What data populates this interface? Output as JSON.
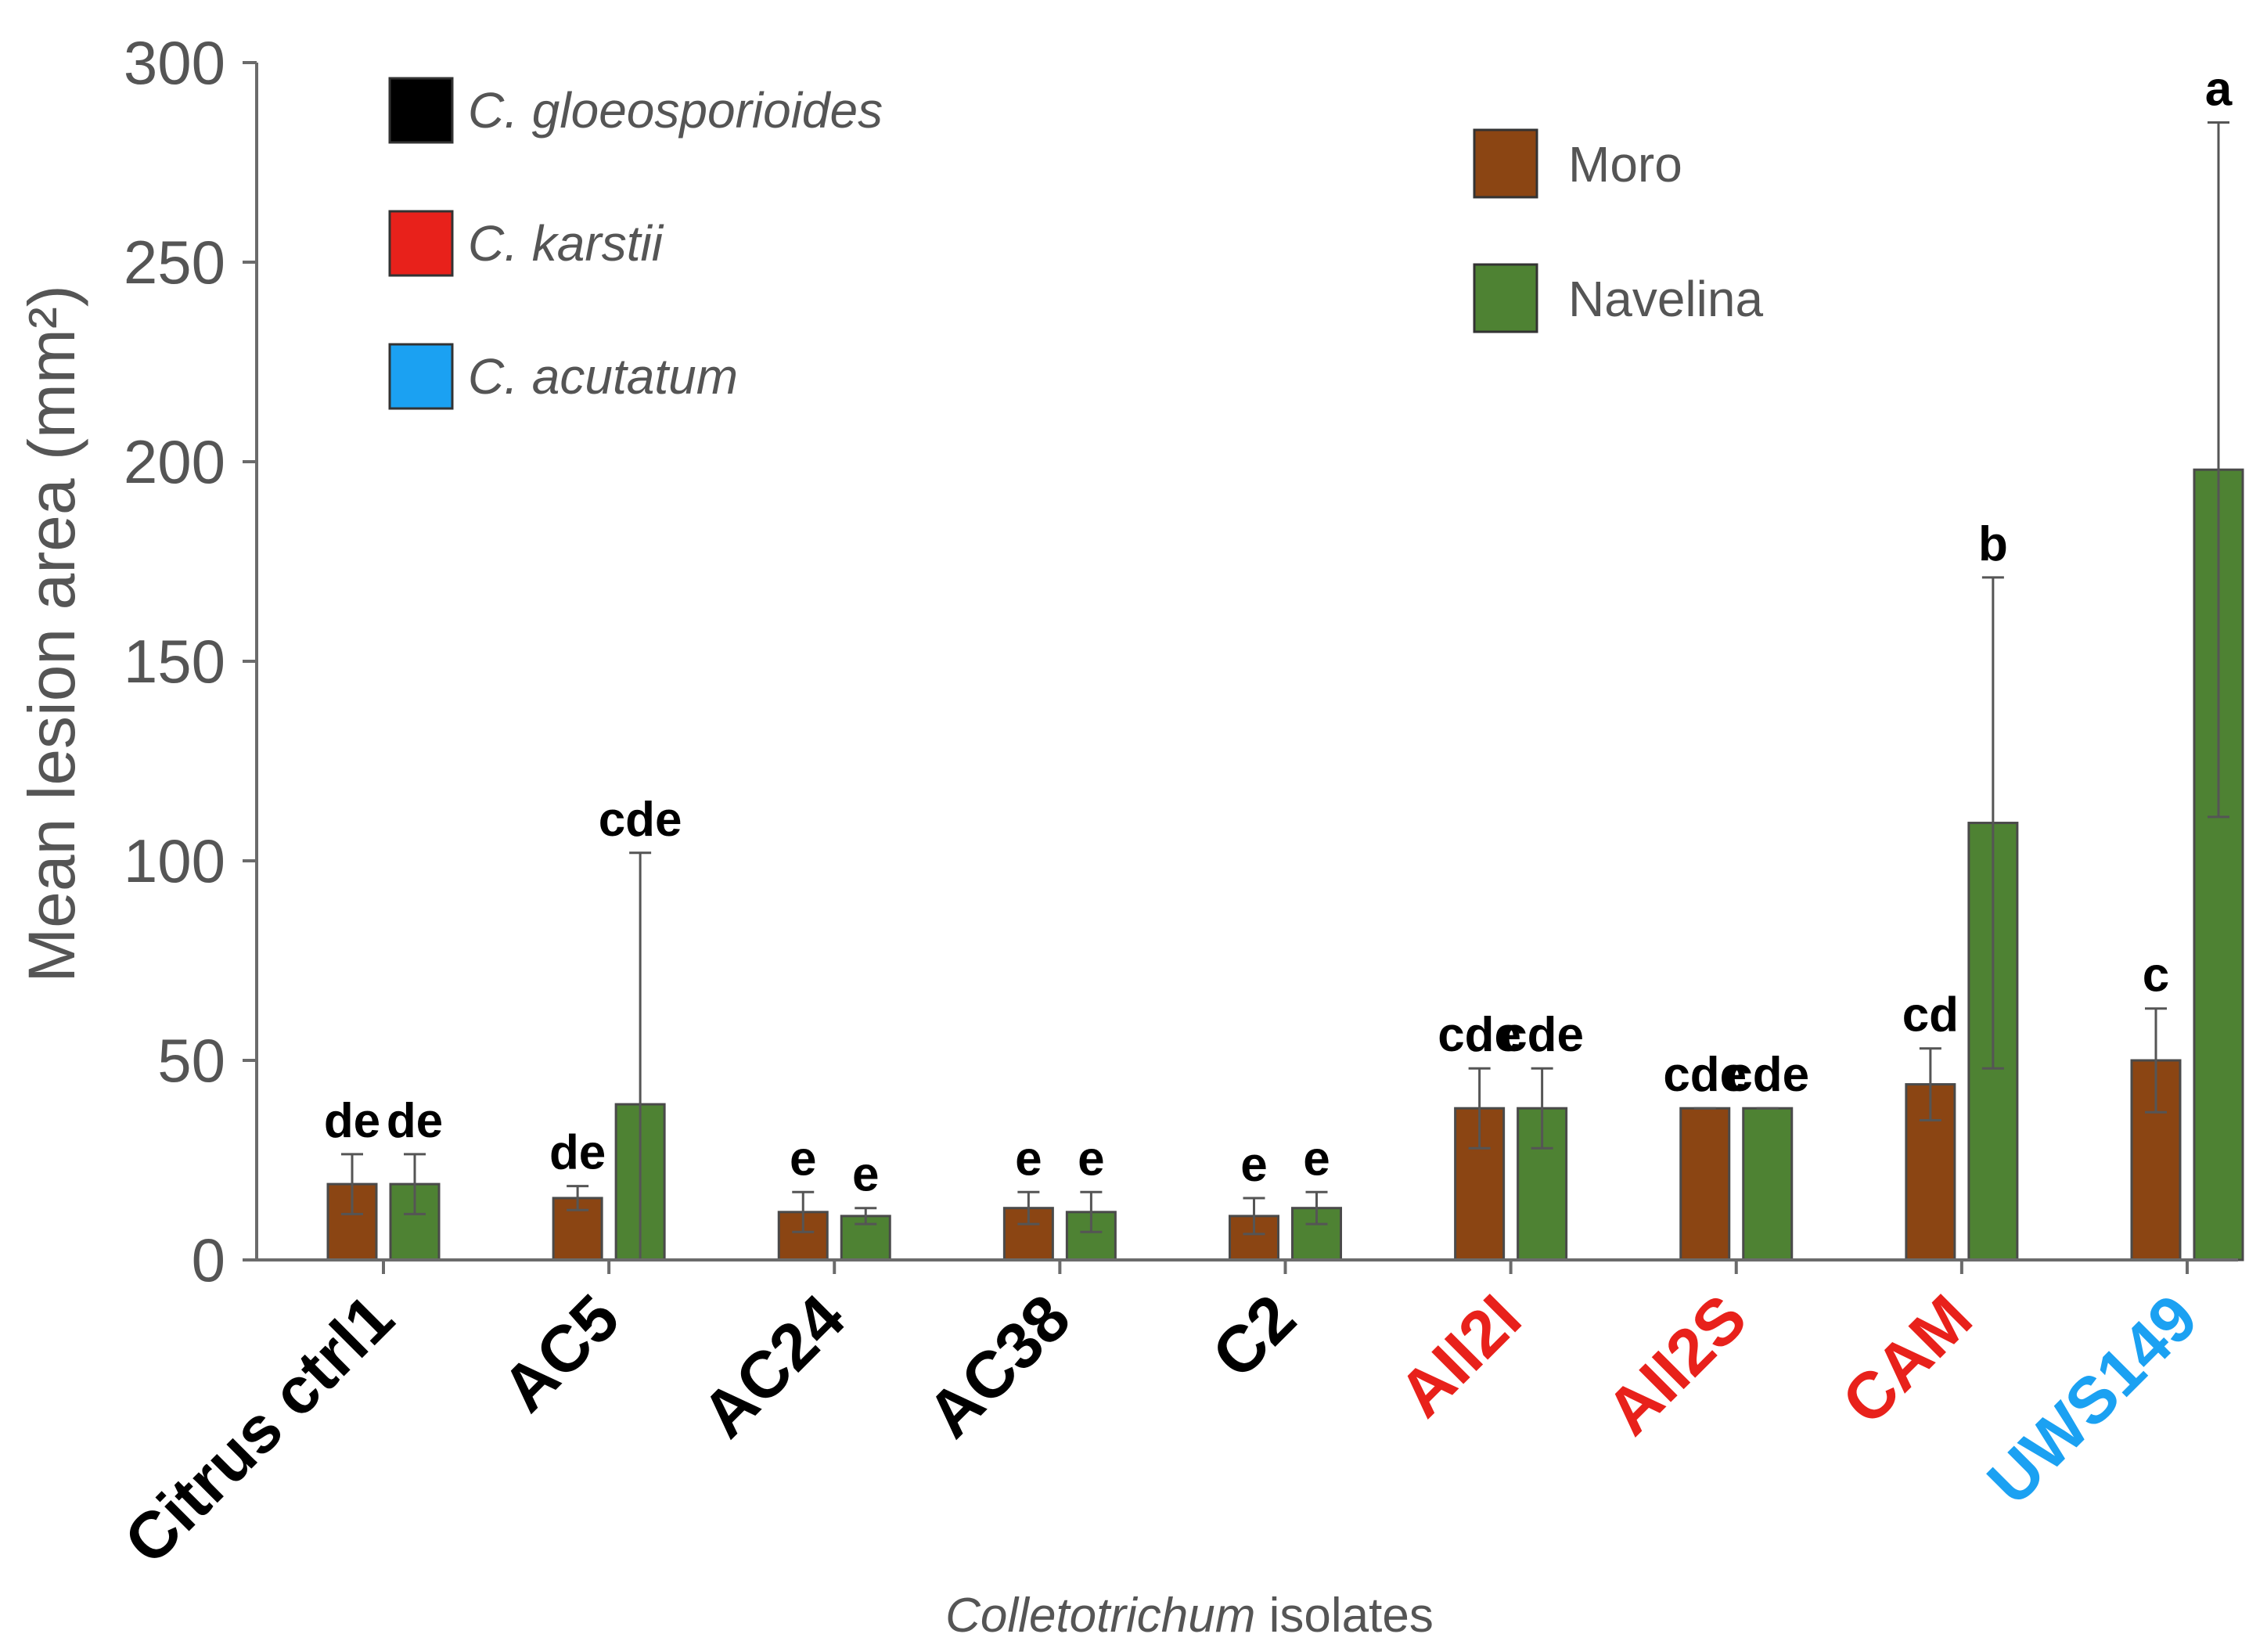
{
  "chart_data": {
    "type": "bar",
    "title": "",
    "ylabel": "Mean lesion area (mm²)",
    "xlabel": {
      "italic": "Colletotrichum",
      "rest": " isolates"
    },
    "ylim": [
      0,
      300
    ],
    "yticks": [
      0,
      50,
      100,
      150,
      200,
      250,
      300
    ],
    "categories": [
      {
        "label": "Citrus ctrl1",
        "species": "C. gloeosporioides"
      },
      {
        "label": "AC5",
        "species": "C. gloeosporioides"
      },
      {
        "label": "AC24",
        "species": "C. gloeosporioides"
      },
      {
        "label": "AC38",
        "species": "C. gloeosporioides"
      },
      {
        "label": "C2",
        "species": "C. gloeosporioides"
      },
      {
        "label": "AII2I",
        "species": "C. karstii"
      },
      {
        "label": "AII2S",
        "species": "C. karstii"
      },
      {
        "label": "CAM",
        "species": "C. karstii"
      },
      {
        "label": "UWS149",
        "species": "C. acutatum"
      }
    ],
    "series": [
      {
        "name": "Moro",
        "color": "#8B4513",
        "values": [
          19,
          15.5,
          12,
          13,
          11,
          38,
          38,
          44,
          50
        ],
        "errors": [
          7.5,
          3,
          5,
          4,
          4.5,
          10,
          0,
          9,
          13
        ],
        "significance": [
          "de",
          "de",
          "e",
          "e",
          "e",
          "cde",
          "cde",
          "cd",
          "c"
        ]
      },
      {
        "name": "Navelina",
        "color": "#4E8233",
        "values": [
          19,
          39,
          11,
          12,
          13,
          38,
          38,
          109.5,
          198
        ],
        "errors": [
          7.5,
          63,
          2,
          5,
          4,
          10,
          0,
          61.5,
          87
        ],
        "significance": [
          "de",
          "cde",
          "e",
          "e",
          "e",
          "cde",
          "cde",
          "b",
          "a"
        ]
      }
    ],
    "species_legend": [
      {
        "name": "C. gloeosporioides",
        "color": "#000000"
      },
      {
        "name": "C. karstii",
        "color": "#E8211B"
      },
      {
        "name": "C. acutatum",
        "color": "#1BA1F2"
      }
    ],
    "cultivar_legend_position": "top-right",
    "species_legend_position": "top-left",
    "grid": false
  }
}
